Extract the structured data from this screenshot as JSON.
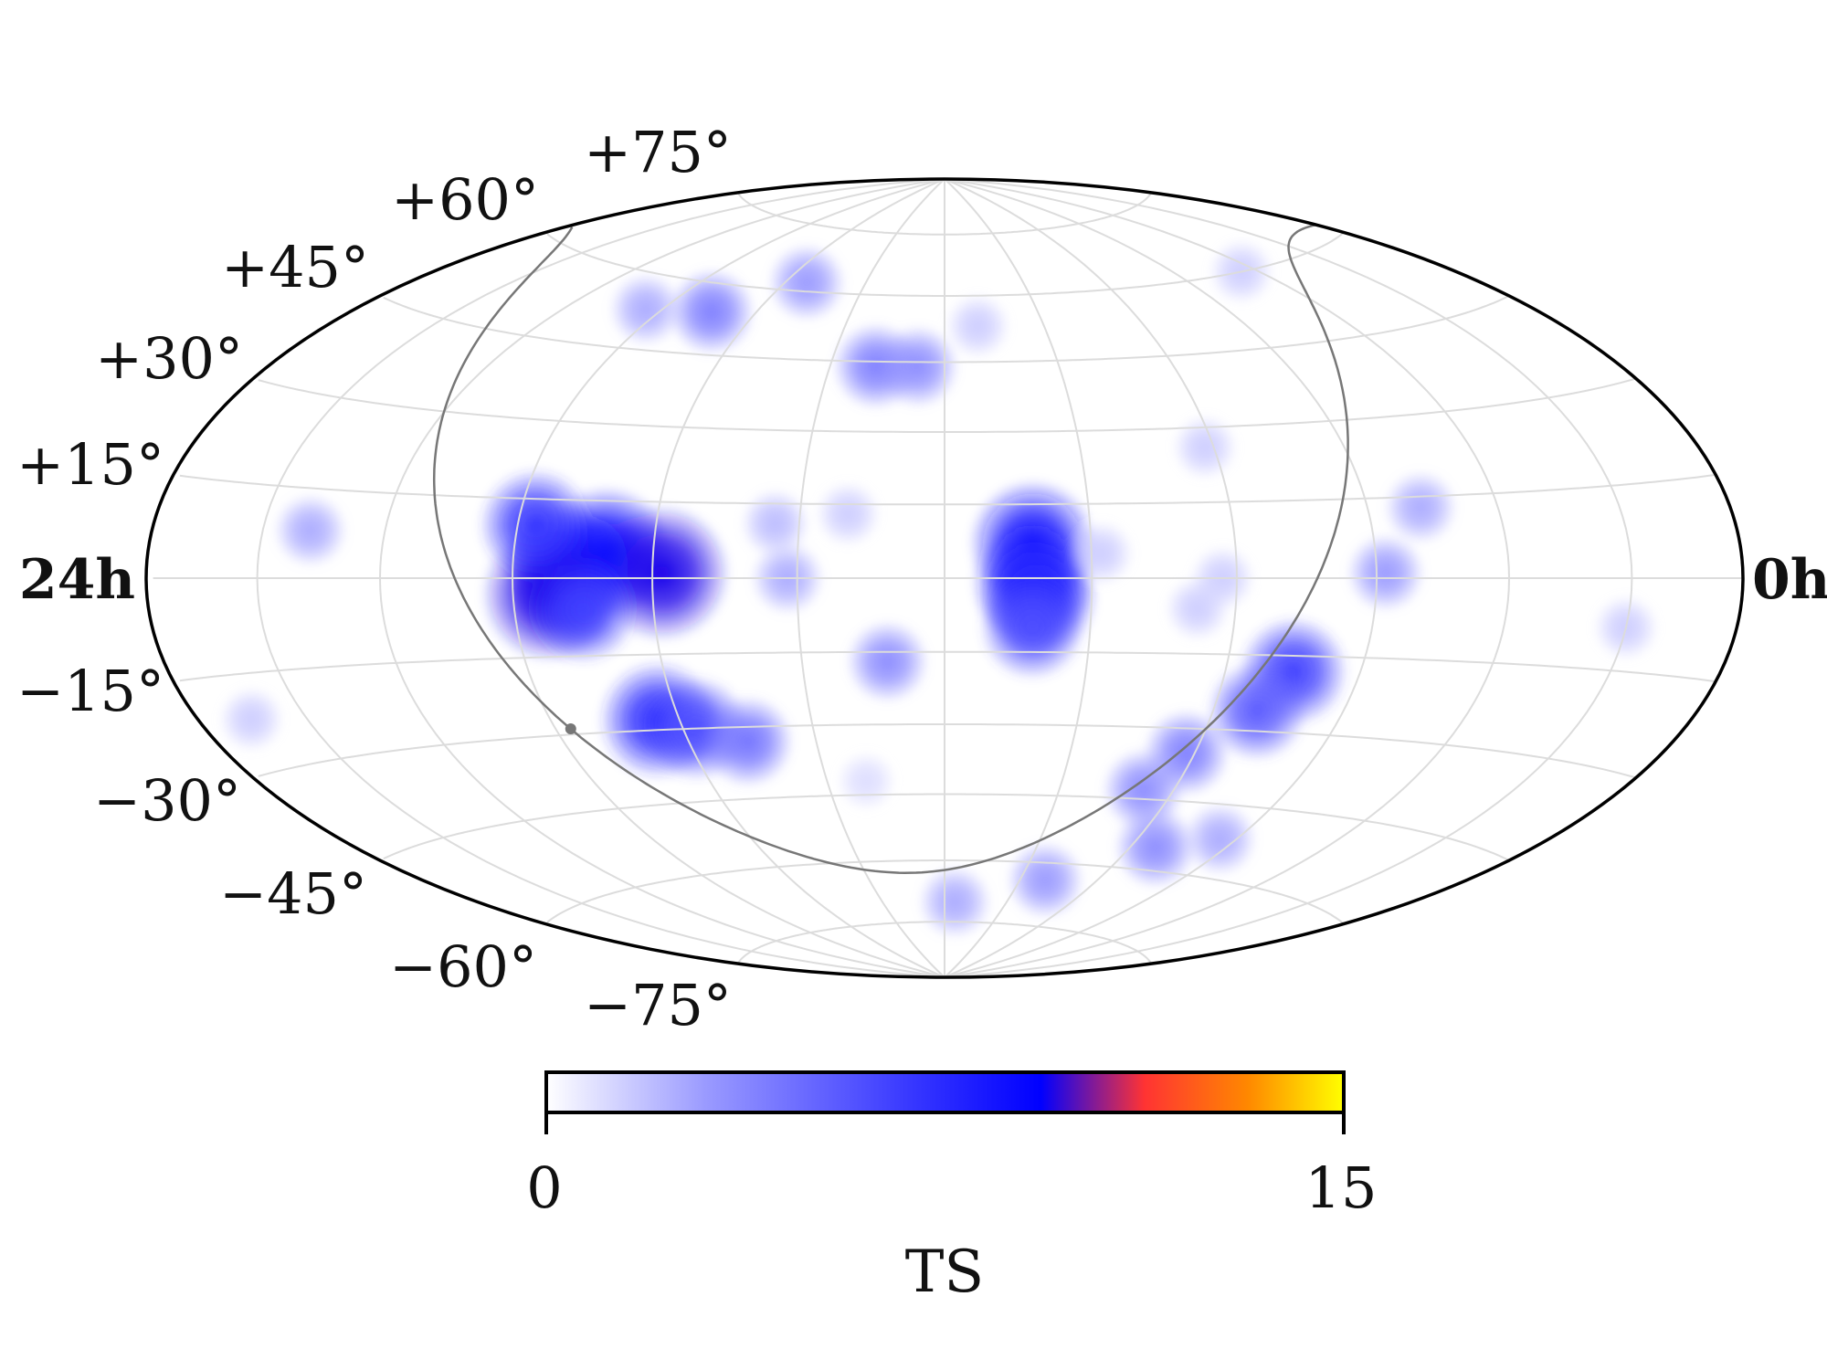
{
  "chart_data": {
    "type": "heatmap",
    "projection": "hammer-aitoff",
    "coordinates": "equatorial",
    "ra_labels": {
      "left": "24h",
      "right": "0h"
    },
    "lat_labels": {
      "north": [
        "+15°",
        "+30°",
        "+45°",
        "+60°",
        "+75°"
      ],
      "south": [
        "−15°",
        "−30°",
        "−45°",
        "−60°",
        "−75°"
      ]
    },
    "grid": true,
    "grid_ra_step_hours": 2,
    "grid_dec_step_deg": 15,
    "colorbar": {
      "title": "TS",
      "min": 0,
      "max": 15,
      "min_label": "0",
      "max_label": "15",
      "colors": [
        "#ffffff",
        "#9a9aff",
        "#3a3aff",
        "#0000ff",
        "#ff3333",
        "#ff8800",
        "#ffff00"
      ],
      "stops": [
        0,
        0.2,
        0.45,
        0.62,
        0.75,
        0.88,
        1.0
      ]
    },
    "galactic_plane_color": "#777777",
    "galactic_center": {
      "ra_deg": 266.4,
      "dec_deg": -28.9
    },
    "hotspots": [
      {
        "ra_deg": 250,
        "dec_deg": 5,
        "ts": 9.0
      },
      {
        "ra_deg": 238,
        "dec_deg": 1,
        "ts": 9.5
      },
      {
        "ra_deg": 258,
        "dec_deg": 2,
        "ts": 8.5
      },
      {
        "ra_deg": 262,
        "dec_deg": -3,
        "ts": 9.5
      },
      {
        "ra_deg": 266,
        "dec_deg": 10,
        "ts": 7.0
      },
      {
        "ra_deg": 255,
        "dec_deg": -6,
        "ts": 6.5
      },
      {
        "ra_deg": 245,
        "dec_deg": -28,
        "ts": 7.5
      },
      {
        "ra_deg": 237,
        "dec_deg": -30,
        "ts": 6.0
      },
      {
        "ra_deg": 226,
        "dec_deg": -33,
        "ts": 4.5
      },
      {
        "ra_deg": 254,
        "dec_deg": 54,
        "ts": 4.0
      },
      {
        "ra_deg": 232,
        "dec_deg": 62,
        "ts": 3.0
      },
      {
        "ra_deg": 275,
        "dec_deg": 53,
        "ts": 2.5
      },
      {
        "ra_deg": 318,
        "dec_deg": 8,
        "ts": 2.5
      },
      {
        "ra_deg": 345,
        "dec_deg": -22,
        "ts": 1.5
      },
      {
        "ra_deg": 198,
        "dec_deg": 44,
        "ts": 4.0
      },
      {
        "ra_deg": 187,
        "dec_deg": 44,
        "ts": 3.5
      },
      {
        "ra_deg": 170,
        "dec_deg": 53,
        "ts": 1.5
      },
      {
        "ra_deg": 162,
        "dec_deg": 7,
        "ts": 8.5
      },
      {
        "ra_deg": 162,
        "dec_deg": -1,
        "ts": 8.0
      },
      {
        "ra_deg": 161,
        "dec_deg": -4,
        "ts": 7.5
      },
      {
        "ra_deg": 162,
        "dec_deg": -10,
        "ts": 6.0
      },
      {
        "ra_deg": 192,
        "dec_deg": -17,
        "ts": 3.5
      },
      {
        "ra_deg": 212,
        "dec_deg": 0,
        "ts": 2.5
      },
      {
        "ra_deg": 200,
        "dec_deg": 13,
        "ts": 1.5
      },
      {
        "ra_deg": 215,
        "dec_deg": 11,
        "ts": 2.0
      },
      {
        "ra_deg": 200,
        "dec_deg": -42,
        "ts": 1.0
      },
      {
        "ra_deg": 148,
        "dec_deg": 5,
        "ts": 1.5
      },
      {
        "ra_deg": 105,
        "dec_deg": -18,
        "ts": 6.5
      },
      {
        "ra_deg": 110,
        "dec_deg": -26,
        "ts": 5.5
      },
      {
        "ra_deg": 122,
        "dec_deg": -35,
        "ts": 4.0
      },
      {
        "ra_deg": 128,
        "dec_deg": -43,
        "ts": 3.5
      },
      {
        "ra_deg": 112,
        "dec_deg": -55,
        "ts": 3.5
      },
      {
        "ra_deg": 140,
        "dec_deg": -64,
        "ts": 3.0
      },
      {
        "ra_deg": 95,
        "dec_deg": -52,
        "ts": 2.5
      },
      {
        "ra_deg": 175,
        "dec_deg": -70,
        "ts": 2.5
      },
      {
        "ra_deg": 128,
        "dec_deg": -6,
        "ts": 1.5
      },
      {
        "ra_deg": 123,
        "dec_deg": 0,
        "ts": 1.5
      },
      {
        "ra_deg": 88,
        "dec_deg": 1,
        "ts": 3.0
      },
      {
        "ra_deg": 78,
        "dec_deg": 13,
        "ts": 2.5
      },
      {
        "ra_deg": 122,
        "dec_deg": 26,
        "ts": 1.5
      },
      {
        "ra_deg": 66,
        "dec_deg": 60,
        "ts": 1.5
      },
      {
        "ra_deg": 30,
        "dec_deg": -8,
        "ts": 1.5
      }
    ]
  }
}
